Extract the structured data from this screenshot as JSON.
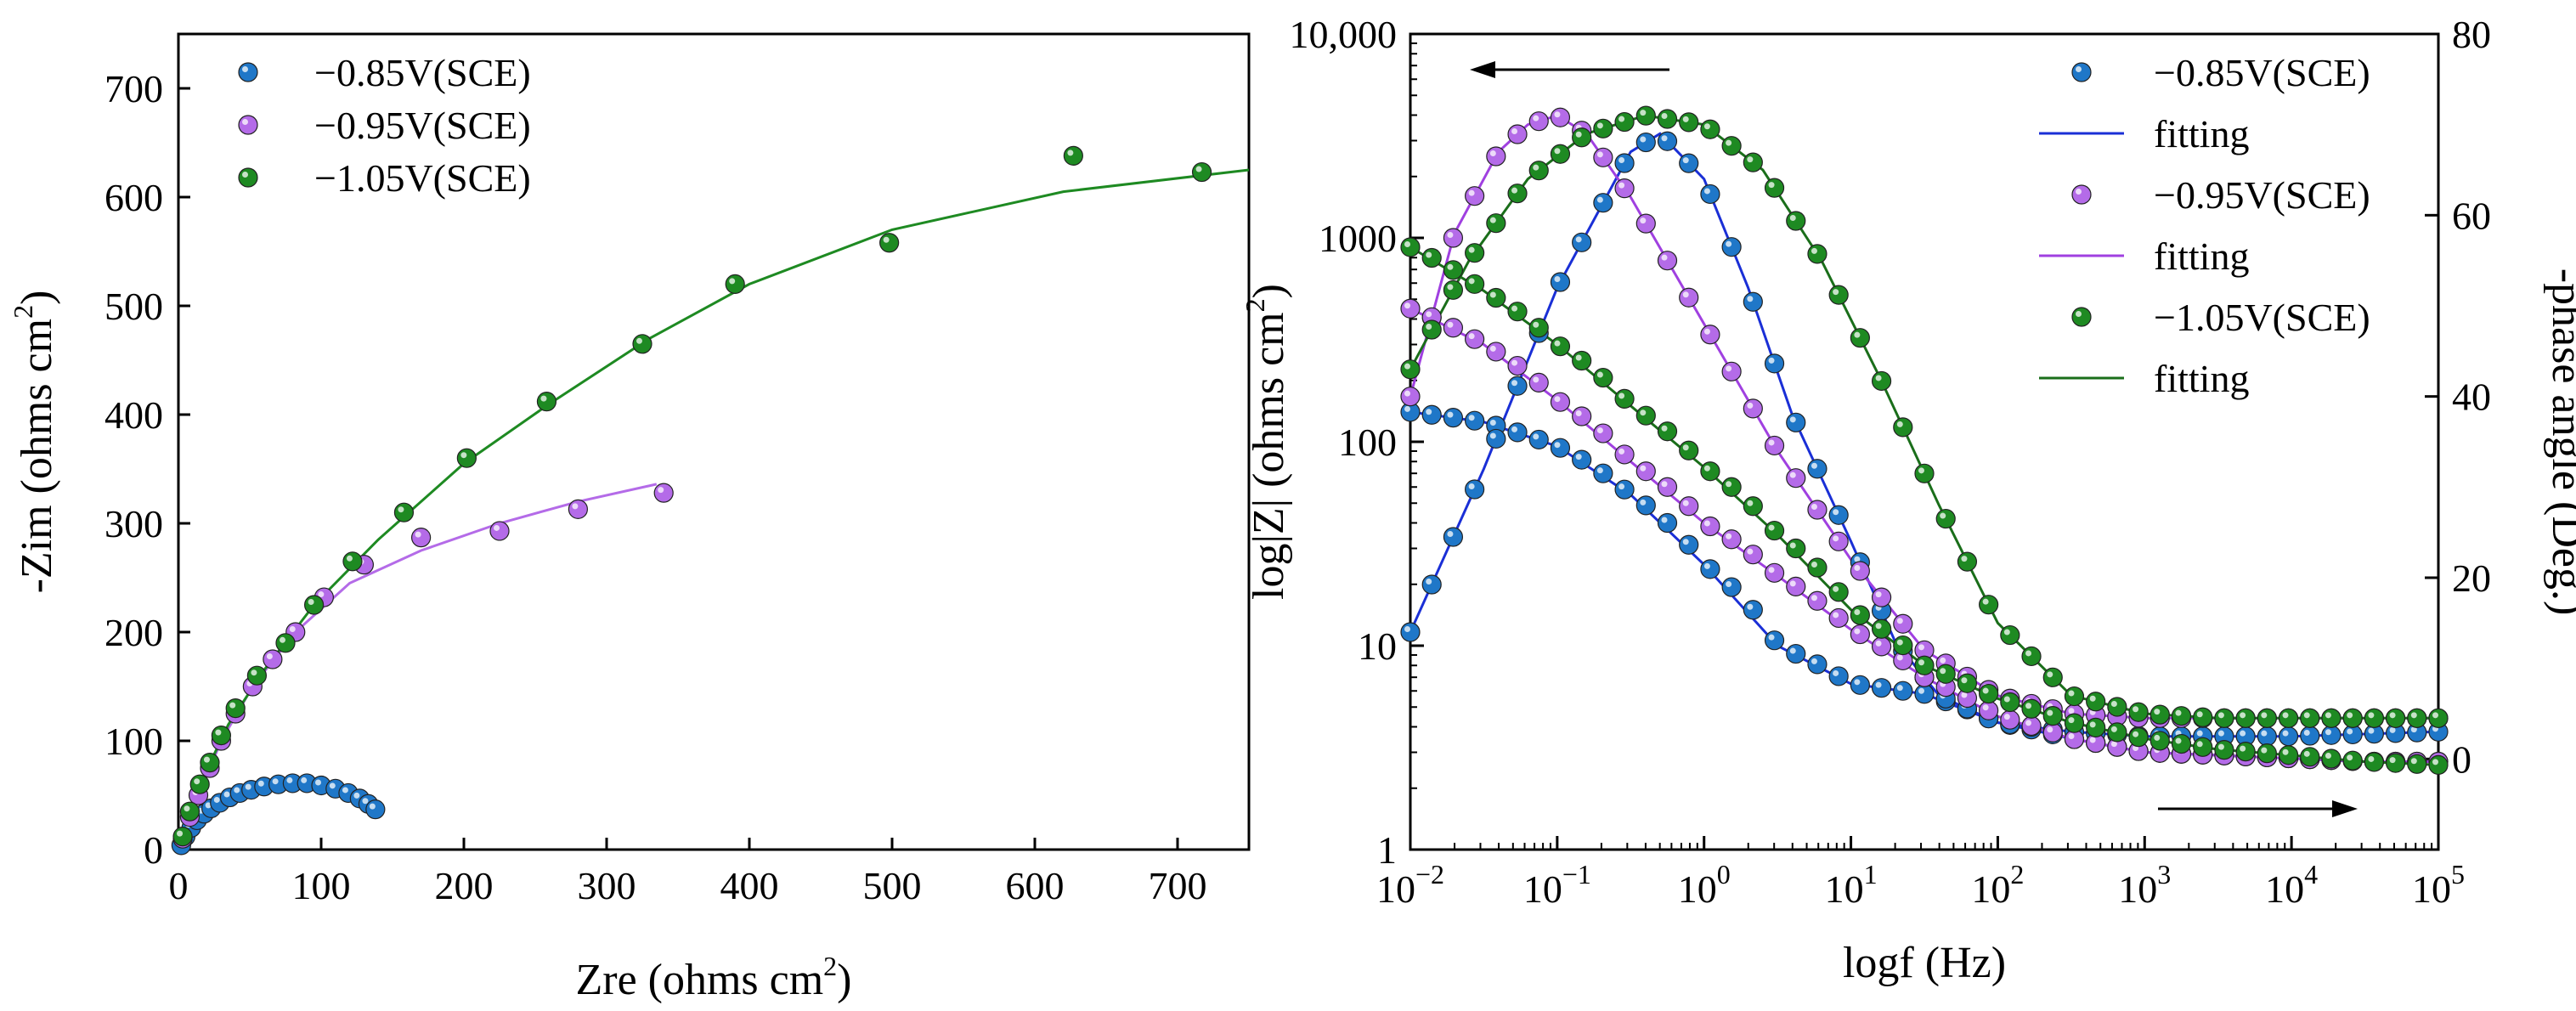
{
  "chart_data": [
    {
      "type": "scatter",
      "panel": "nyquist",
      "xlabel": "Zre (ohms cm",
      "xlabel_sup": "2",
      "xlabel_end": ")",
      "ylabel": "-Zim (ohms cm",
      "ylabel_sup": "2",
      "ylabel_end": ")",
      "xlim": [
        0,
        750
      ],
      "ylim": [
        0,
        750
      ],
      "xticks": [
        0,
        100,
        200,
        300,
        400,
        500,
        600,
        700
      ],
      "yticks": [
        0,
        100,
        200,
        300,
        400,
        500,
        600,
        700
      ],
      "legend_position": "top-left",
      "series": [
        {
          "name": "−0.85V(SCE)",
          "color": "#1f77c8",
          "points": [
            [
              2,
              4
            ],
            [
              5,
              12
            ],
            [
              9,
              20
            ],
            [
              13,
              27
            ],
            [
              18,
              33
            ],
            [
              23,
              38
            ],
            [
              29,
              43
            ],
            [
              36,
              48
            ],
            [
              43,
              52
            ],
            [
              51,
              55
            ],
            [
              60,
              58
            ],
            [
              70,
              60
            ],
            [
              80,
              61
            ],
            [
              90,
              61
            ],
            [
              100,
              59
            ],
            [
              110,
              56
            ],
            [
              119,
              52
            ],
            [
              127,
              47
            ],
            [
              133,
              42
            ],
            [
              138,
              37
            ]
          ],
          "fit": [
            [
              2,
              4
            ],
            [
              9,
              20
            ],
            [
              20,
              34
            ],
            [
              36,
              48
            ],
            [
              55,
              56
            ],
            [
              75,
              61
            ],
            [
              95,
              61
            ],
            [
              112,
              56
            ],
            [
              127,
              47
            ],
            [
              140,
              36
            ]
          ]
        },
        {
          "name": "−0.95V(SCE)",
          "color": "#b46be8",
          "points": [
            [
              3,
              10
            ],
            [
              8,
              30
            ],
            [
              14,
              50
            ],
            [
              22,
              75
            ],
            [
              30,
              100
            ],
            [
              40,
              125
            ],
            [
              52,
              150
            ],
            [
              66,
              175
            ],
            [
              82,
              200
            ],
            [
              102,
              232
            ],
            [
              130,
              262
            ],
            [
              170,
              287
            ],
            [
              225,
              293
            ],
            [
              280,
              313
            ],
            [
              340,
              328
            ]
          ],
          "fit": [
            [
              3,
              10
            ],
            [
              14,
              50
            ],
            [
              30,
              100
            ],
            [
              52,
              150
            ],
            [
              82,
              200
            ],
            [
              120,
              245
            ],
            [
              170,
              275
            ],
            [
              225,
              300
            ],
            [
              280,
              320
            ],
            [
              335,
              336
            ]
          ]
        },
        {
          "name": "−1.05V(SCE)",
          "color": "#1e8a22",
          "points": [
            [
              3,
              12
            ],
            [
              8,
              35
            ],
            [
              15,
              60
            ],
            [
              22,
              80
            ],
            [
              30,
              105
            ],
            [
              40,
              130
            ],
            [
              55,
              160
            ],
            [
              75,
              190
            ],
            [
              95,
              225
            ],
            [
              122,
              265
            ],
            [
              158,
              310
            ],
            [
              202,
              360
            ],
            [
              258,
              412
            ],
            [
              325,
              465
            ],
            [
              390,
              520
            ],
            [
              498,
              558
            ],
            [
              627,
              638
            ],
            [
              717,
              623
            ]
          ],
          "fit": [
            [
              3,
              12
            ],
            [
              15,
              60
            ],
            [
              35,
              115
            ],
            [
              60,
              165
            ],
            [
              95,
              225
            ],
            [
              140,
              285
            ],
            [
              200,
              355
            ],
            [
              260,
              410
            ],
            [
              330,
              470
            ],
            [
              400,
              520
            ],
            [
              500,
              570
            ],
            [
              620,
              605
            ],
            [
              750,
              625
            ]
          ]
        }
      ]
    },
    {
      "type": "line",
      "panel": "bode",
      "xlabel": "logf (Hz)",
      "ylabel": "log|Z| (ohms cm",
      "ylabel_sup": "2",
      "ylabel_end": ")",
      "y2label": "-phase angle (Deg.)",
      "xscale": "log",
      "yscale": "log",
      "xlim": [
        0.01,
        100000
      ],
      "ylim": [
        1,
        10000
      ],
      "y2lim": [
        -10,
        80
      ],
      "xtick_base": "10",
      "xtick_exponents": [
        "−2",
        "−1",
        "0",
        "1",
        "2",
        "3",
        "4",
        "5"
      ],
      "ytick_labels": [
        "1",
        "10",
        "100",
        "1000",
        "10,000"
      ],
      "y2ticks": [
        0,
        20,
        40,
        60,
        80
      ],
      "legend_position": "top-right",
      "legend": [
        {
          "label": "−0.85V(SCE)",
          "color": "#1f77c8",
          "kind": "marker"
        },
        {
          "label": "fitting",
          "color": "#1a2fd6",
          "kind": "line"
        },
        {
          "label": "−0.95V(SCE)",
          "color": "#b46be8",
          "kind": "marker"
        },
        {
          "label": "fitting",
          "color": "#a040e0",
          "kind": "line"
        },
        {
          "label": "−1.05V(SCE)",
          "color": "#1e8a22",
          "kind": "marker"
        },
        {
          "label": "fitting",
          "color": "#1a6e1a",
          "kind": "line"
        }
      ],
      "arrows": [
        {
          "direction": "left",
          "target_axis": "log|Z|",
          "position": "top-left"
        },
        {
          "direction": "right",
          "target_axis": "-phase angle",
          "position": "bottom-right"
        }
      ],
      "series": [
        {
          "name": "−0.85V(SCE) |Z|",
          "color": "#1f77c8",
          "fit_color": "#1a2fd6",
          "axis": "left",
          "points": [
            [
              -2,
              140
            ],
            [
              -1.5,
              125
            ],
            [
              -1,
              95
            ],
            [
              -0.5,
              55
            ],
            [
              0,
              25
            ],
            [
              0.5,
              10
            ],
            [
              1,
              6.5
            ],
            [
              1.5,
              5.8
            ],
            [
              2,
              4.2
            ],
            [
              2.5,
              3.5
            ],
            [
              3,
              3.0
            ],
            [
              3.5,
              2.9
            ],
            [
              4,
              2.8
            ],
            [
              4.5,
              2.7
            ],
            [
              5,
              2.7
            ]
          ]
        },
        {
          "name": "−0.85V(SCE) phase",
          "color": "#1f77c8",
          "fit_color": "#1a2fd6",
          "axis": "right",
          "points": [
            [
              -2,
              14
            ],
            [
              -1.5,
              32
            ],
            [
              -1,
              52
            ],
            [
              -0.5,
              67
            ],
            [
              -0.3,
              69
            ],
            [
              0,
              64
            ],
            [
              0.3,
              52
            ],
            [
              0.6,
              38
            ],
            [
              1,
              24
            ],
            [
              1.3,
              13
            ],
            [
              1.6,
              7
            ],
            [
              2,
              4
            ],
            [
              2.5,
              3
            ],
            [
              3,
              2.5
            ],
            [
              4,
              2.5
            ],
            [
              5,
              3
            ]
          ]
        },
        {
          "name": "−0.95V(SCE) |Z|",
          "color": "#b46be8",
          "fit_color": "#a040e0",
          "axis": "left",
          "points": [
            [
              -2,
              450
            ],
            [
              -1.5,
              300
            ],
            [
              -1,
              160
            ],
            [
              -0.5,
              80
            ],
            [
              0,
              40
            ],
            [
              0.5,
              22
            ],
            [
              1,
              12
            ],
            [
              1.5,
              7
            ],
            [
              2,
              4.5
            ],
            [
              2.5,
              3.5
            ],
            [
              3,
              3.0
            ],
            [
              3.5,
              2.9
            ],
            [
              4,
              2.8
            ],
            [
              4.5,
              2.7
            ],
            [
              5,
              2.7
            ]
          ]
        },
        {
          "name": "−0.95V(SCE) phase",
          "color": "#b46be8",
          "fit_color": "#a040e0",
          "axis": "right",
          "points": [
            [
              -2,
              40
            ],
            [
              -1.7,
              58
            ],
            [
              -1.4,
              67
            ],
            [
              -1.2,
              70
            ],
            [
              -1,
              71
            ],
            [
              -0.8,
              69
            ],
            [
              -0.5,
              62
            ],
            [
              0,
              48
            ],
            [
              0.5,
              34
            ],
            [
              1,
              22
            ],
            [
              1.5,
              12
            ],
            [
              2,
              7
            ],
            [
              2.5,
              5
            ],
            [
              3,
              4.5
            ],
            [
              4,
              4.5
            ],
            [
              5,
              4.5
            ]
          ]
        },
        {
          "name": "−1.05V(SCE) |Z|",
          "color": "#1e8a22",
          "fit_color": "#1a6e1a",
          "axis": "left",
          "points": [
            [
              -2,
              900
            ],
            [
              -1.5,
              550
            ],
            [
              -1,
              300
            ],
            [
              -0.5,
              150
            ],
            [
              0,
              75
            ],
            [
              0.5,
              35
            ],
            [
              1,
              15
            ],
            [
              1.5,
              8
            ],
            [
              2,
              5.5
            ],
            [
              2.5,
              4.2
            ],
            [
              3,
              3.5
            ],
            [
              3.5,
              3.1
            ],
            [
              4,
              2.9
            ],
            [
              4.5,
              2.7
            ],
            [
              5,
              2.6
            ]
          ]
        },
        {
          "name": "−1.05V(SCE) phase",
          "color": "#1e8a22",
          "fit_color": "#1a6e1a",
          "axis": "right",
          "points": [
            [
              -2,
              43
            ],
            [
              -1.6,
              55
            ],
            [
              -1.2,
              64
            ],
            [
              -0.8,
              69
            ],
            [
              -0.4,
              71
            ],
            [
              0,
              70
            ],
            [
              0.4,
              65
            ],
            [
              0.8,
              55
            ],
            [
              1.2,
              42
            ],
            [
              1.6,
              28
            ],
            [
              2,
              15
            ],
            [
              2.5,
              7
            ],
            [
              3,
              5
            ],
            [
              3.5,
              4.5
            ],
            [
              4,
              4.5
            ],
            [
              5,
              4.5
            ]
          ]
        }
      ]
    }
  ]
}
